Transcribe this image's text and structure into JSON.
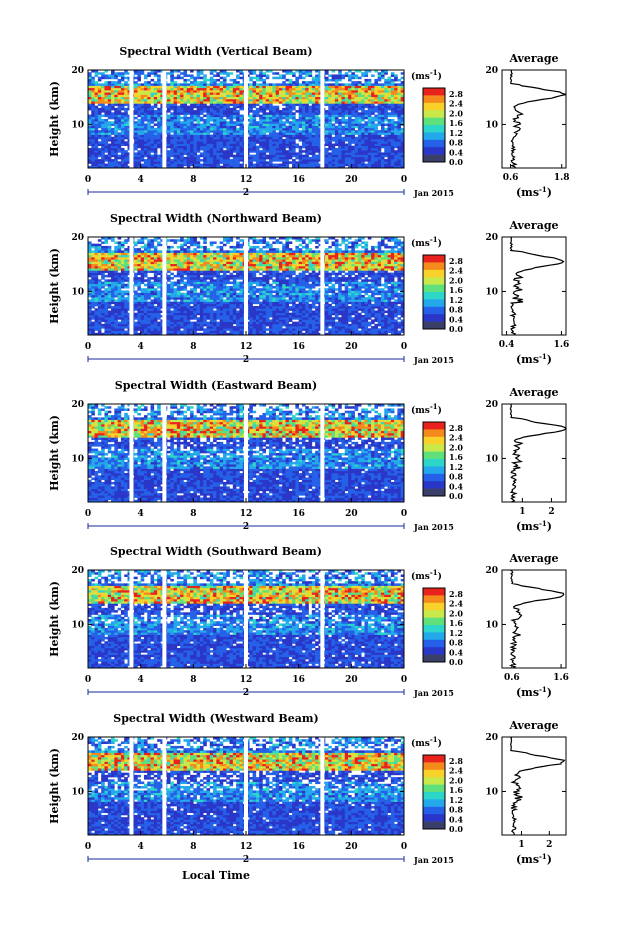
{
  "figure": {
    "colorbar": {
      "unit_label": "(ms",
      "unit_sup": "-1",
      "tick_labels": [
        "2.8",
        "2.4",
        "2.0",
        "1.6",
        "1.2",
        "0.8",
        "0.4",
        "0.0"
      ],
      "colors": [
        "#e8221c",
        "#f58a1c",
        "#f8d22a",
        "#c9e84a",
        "#5fe07a",
        "#2cd6c8",
        "#24a8ec",
        "#2460e8",
        "#2a36c8",
        "#3a3f6a"
      ]
    },
    "heatmap_x_ticks": [
      "0",
      "4",
      "8",
      "12",
      "16",
      "20",
      "0"
    ],
    "day_label": "2",
    "month_label": "Jan 2015",
    "height_ticks": [
      "20",
      "10"
    ],
    "ylabel": "Height (km)",
    "average_title": "Average",
    "average_unit_label": "(ms",
    "average_unit_sup": "-1",
    "x_axis_title": "Local Time"
  },
  "chart_data": [
    {
      "type": "heatmap",
      "title": "Spectral Width (Vertical Beam)",
      "ylabel": "Height (km)",
      "x_ticks": [
        "0",
        "4",
        "8",
        "12",
        "16",
        "20",
        "0"
      ],
      "xlim_hours": [
        0,
        24
      ],
      "ylim_km": [
        2,
        20
      ],
      "data_gaps_hours": [
        3.3,
        5.8,
        12.0,
        17.8
      ],
      "high_width_layer_km": [
        14,
        17
      ],
      "average_profile": {
        "title": "Average",
        "x_ticks": [
          "0.6",
          "1.8"
        ],
        "x_tick_values": [
          0.6,
          1.8
        ],
        "xlim": [
          0.4,
          1.9
        ],
        "peak_km": 15.5,
        "peak_value": 1.85
      }
    },
    {
      "type": "heatmap",
      "title": "Spectral Width (Northward Beam)",
      "ylabel": "Height (km)",
      "x_ticks": [
        "0",
        "4",
        "8",
        "12",
        "16",
        "20",
        "0"
      ],
      "xlim_hours": [
        0,
        24
      ],
      "ylim_km": [
        2,
        20
      ],
      "data_gaps_hours": [
        3.3,
        5.8,
        12.0,
        17.8
      ],
      "high_width_layer_km": [
        14,
        17
      ],
      "average_profile": {
        "title": "Average",
        "x_ticks": [
          "0.4",
          "1.6"
        ],
        "x_tick_values": [
          0.4,
          1.6
        ],
        "xlim": [
          0.3,
          1.7
        ],
        "peak_km": 15.5,
        "peak_value": 1.65
      }
    },
    {
      "type": "heatmap",
      "title": "Spectral Width (Eastward Beam)",
      "ylabel": "Height (km)",
      "x_ticks": [
        "0",
        "4",
        "8",
        "12",
        "16",
        "20",
        "0"
      ],
      "xlim_hours": [
        0,
        24
      ],
      "ylim_km": [
        2,
        20
      ],
      "data_gaps_hours": [
        3.3,
        5.8,
        12.0,
        17.8
      ],
      "high_width_layer_km": [
        14,
        17
      ],
      "average_profile": {
        "title": "Average",
        "x_ticks": [
          "1",
          "2"
        ],
        "x_tick_values": [
          1,
          2
        ],
        "xlim": [
          0.3,
          2.5
        ],
        "peak_km": 15.5,
        "peak_value": 2.5
      }
    },
    {
      "type": "heatmap",
      "title": "Spectral Width (Southward Beam)",
      "ylabel": "Height (km)",
      "x_ticks": [
        "0",
        "4",
        "8",
        "12",
        "16",
        "20",
        "0"
      ],
      "xlim_hours": [
        0,
        24
      ],
      "ylim_km": [
        2,
        20
      ],
      "data_gaps_hours": [
        3.3,
        5.8,
        12.0,
        17.8
      ],
      "high_width_layer_km": [
        14,
        17
      ],
      "average_profile": {
        "title": "Average",
        "x_ticks": [
          "0.6",
          "1.6"
        ],
        "x_tick_values": [
          0.6,
          1.6
        ],
        "xlim": [
          0.4,
          1.7
        ],
        "peak_km": 15.5,
        "peak_value": 1.68
      }
    },
    {
      "type": "heatmap",
      "title": "Spectral Width (Westward Beam)",
      "ylabel": "Height (km)",
      "x_ticks": [
        "0",
        "4",
        "8",
        "12",
        "16",
        "20",
        "0"
      ],
      "xlim_hours": [
        0,
        24
      ],
      "ylim_km": [
        2,
        20
      ],
      "data_gaps_hours": [
        3.3,
        5.8,
        12.0,
        17.8
      ],
      "high_width_layer_km": [
        14,
        17
      ],
      "xlabel": "Local Time",
      "average_profile": {
        "title": "Average",
        "x_ticks": [
          "1",
          "2"
        ],
        "x_tick_values": [
          1,
          2
        ],
        "xlim": [
          0.3,
          2.6
        ],
        "peak_km": 15.5,
        "peak_value": 2.55
      }
    }
  ]
}
